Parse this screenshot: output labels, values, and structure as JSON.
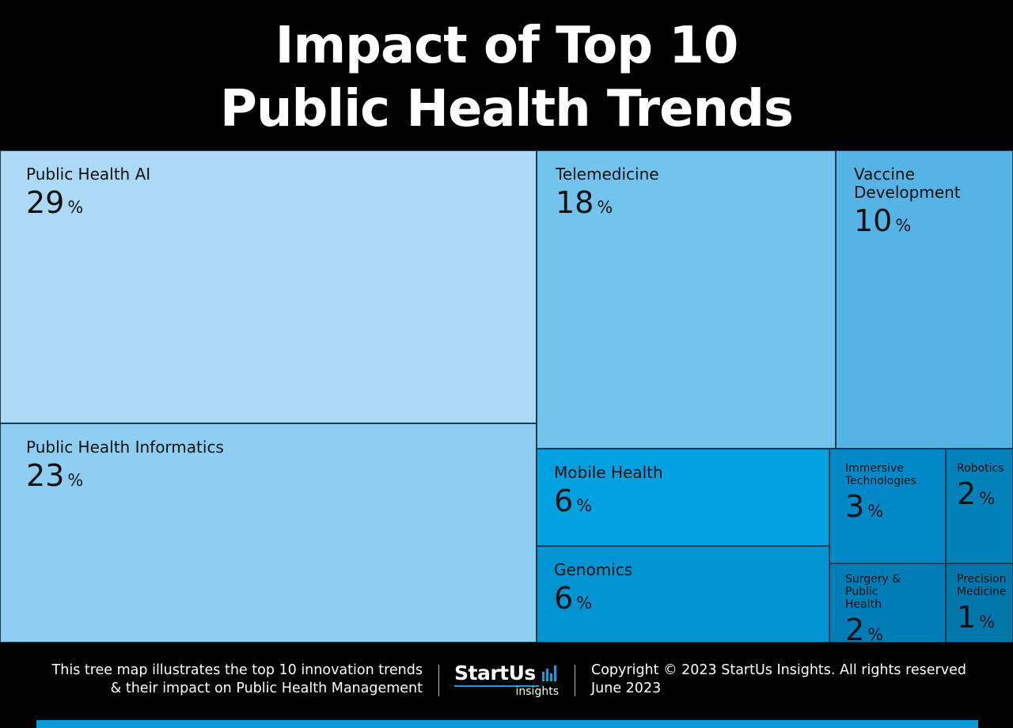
{
  "title_line1": "Impact of Top 10",
  "title_line2": "Public Health Trends",
  "chart_data": {
    "type": "treemap",
    "title": "Impact of Top 10 Public Health Trends",
    "value_unit": "%",
    "items": [
      {
        "name": "Public Health AI",
        "value": 29,
        "color": "#acd9f6"
      },
      {
        "name": "Public Health Informatics",
        "value": 23,
        "color": "#8ecef2"
      },
      {
        "name": "Telemedicine",
        "value": 18,
        "color": "#72c4ee"
      },
      {
        "name": "Vaccine Development",
        "value": 10,
        "color": "#55b4e5"
      },
      {
        "name": "Mobile Health",
        "value": 6,
        "color": "#00a1de"
      },
      {
        "name": "Genomics",
        "value": 6,
        "color": "#0093d2"
      },
      {
        "name": "Immersive Technologies",
        "value": 3,
        "color": "#0088c6"
      },
      {
        "name": "Robotics",
        "value": 2,
        "color": "#0080b8"
      },
      {
        "name": "Surgery & Public Health",
        "value": 2,
        "color": "#007cb4"
      },
      {
        "name": "Precision Medicine",
        "value": 1,
        "color": "#0076ab"
      }
    ]
  },
  "footer": {
    "description_line1": "This tree map illustrates the top 10 innovation trends",
    "description_line2": "& their impact on Public Health Management",
    "logo_text": "StartUs",
    "logo_sub": "insights",
    "copyright": "Copyright © 2023 StartUs Insights. All rights reserved",
    "date": "June 2023"
  },
  "colors": {
    "background": "#000000",
    "accent": "#0a9ad8"
  }
}
